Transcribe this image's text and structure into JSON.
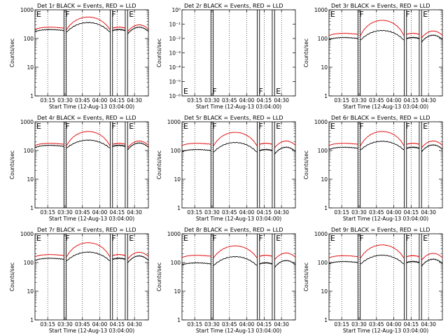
{
  "chart_data": {
    "type": "line",
    "grid_layout": "3x3",
    "xlabel": "Start Time (12-Aug-13 03:04:00)",
    "ylabel": "Counts/sec",
    "x_tick_labels": [
      "03:15",
      "03:30",
      "03:45",
      "04:00",
      "04:15",
      "04:30"
    ],
    "x_range": [
      "03:04",
      "04:42"
    ],
    "y_scale": "log",
    "ylim": [
      1,
      1000
    ],
    "y_tick_labels": [
      "1",
      "10",
      "100",
      "1000"
    ],
    "y_tick_labels_det2": [
      "10⁻⁶",
      "10⁻⁵",
      "10⁻⁴",
      "10⁻³",
      "10⁻²",
      "10⁻¹",
      "10⁰"
    ],
    "ylim_det2": [
      1e-06,
      1
    ],
    "dotted_lines": [
      "03:15",
      "03:30",
      "03:45",
      "04:00",
      "04:15",
      "04:30"
    ],
    "markers": [
      {
        "label": "E",
        "x": "03:04"
      },
      {
        "label": "F",
        "x": "03:29"
      },
      {
        "label": "F",
        "x": "04:09"
      },
      {
        "label": "E",
        "x": "04:24"
      }
    ],
    "marker_lines": [
      "03:29",
      "03:31",
      "04:09",
      "04:11",
      "04:22",
      "04:24"
    ],
    "colors": {
      "events": "#000000",
      "lld": "#e00000"
    },
    "panels": [
      {
        "title": "Det 1r BLACK = Events, RED = LLD",
        "events_level": 190,
        "lld_level": 230,
        "events_peak": 360,
        "lld_peak": 560
      },
      {
        "title": "Det 2r BLACK = Events, RED = LLD",
        "empty": true
      },
      {
        "title": "Det 3r BLACK = Events, RED = LLD",
        "events_level": 100,
        "lld_level": 140,
        "events_peak": 190,
        "lld_peak": 430
      },
      {
        "title": "Det 4r BLACK = Events, RED = LLD",
        "events_level": 140,
        "lld_level": 165,
        "events_peak": 230,
        "lld_peak": 460
      },
      {
        "title": "Det 5r BLACK = Events, RED = LLD",
        "events_level": 100,
        "lld_level": 165,
        "events_peak": 190,
        "lld_peak": 430
      },
      {
        "title": "Det 6r BLACK = Events, RED = LLD",
        "events_level": 120,
        "lld_level": 165,
        "events_peak": 210,
        "lld_peak": 460
      },
      {
        "title": "Det 7r BLACK = Events, RED = LLD",
        "events_level": 130,
        "lld_level": 175,
        "events_peak": 230,
        "lld_peak": 490
      },
      {
        "title": "Det 8r BLACK = Events, RED = LLD",
        "events_level": 90,
        "lld_level": 165,
        "events_peak": 160,
        "lld_peak": 380
      },
      {
        "title": "Det 9r BLACK = Events, RED = LLD",
        "events_level": 100,
        "lld_level": 160,
        "events_peak": 180,
        "lld_peak": 410
      }
    ]
  }
}
